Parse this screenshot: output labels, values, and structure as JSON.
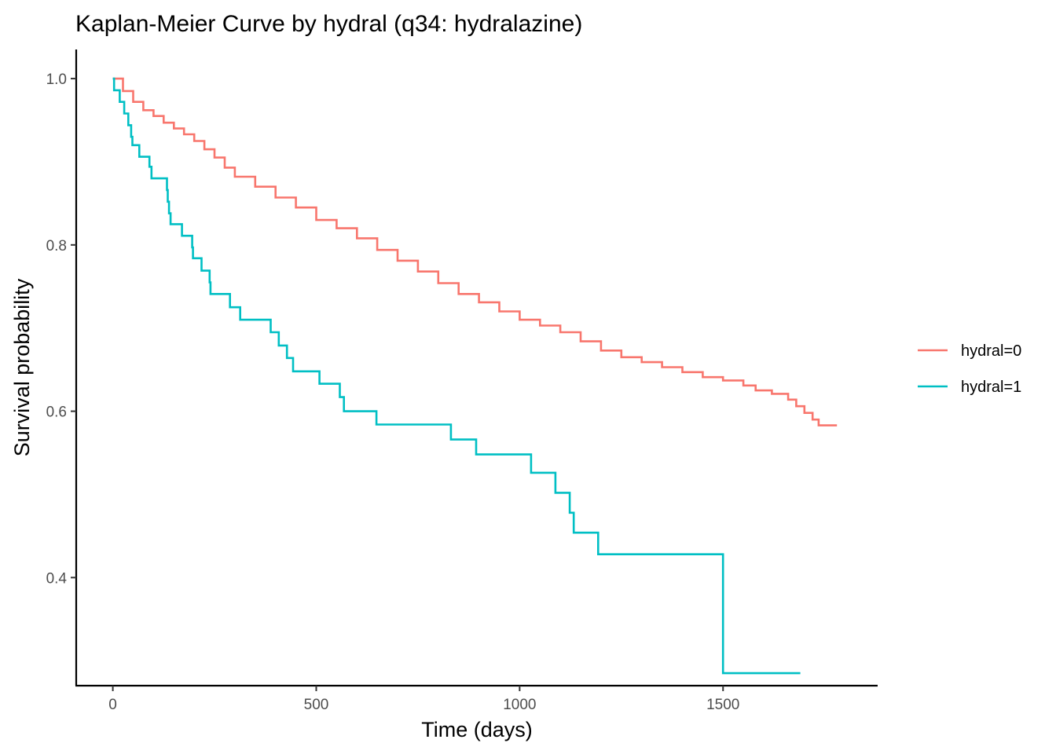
{
  "chart_data": {
    "type": "line",
    "step": true,
    "title": "Kaplan-Meier Curve by hydral (q34: hydralazine)",
    "xlabel": "Time (days)",
    "ylabel": "Survival probability",
    "xlim": [
      -90,
      1880
    ],
    "ylim": [
      0.27,
      1.035
    ],
    "xticks": [
      0,
      500,
      1000,
      1500
    ],
    "xtick_labels": [
      "0",
      "500",
      "1000",
      "1500"
    ],
    "yticks": [
      0.4,
      0.6,
      0.8,
      1.0
    ],
    "ytick_labels": [
      "0.4",
      "0.6",
      "0.8",
      "1.0"
    ],
    "grid": false,
    "legend_position": "right",
    "series": [
      {
        "name": "hydral=0",
        "color": "#F8766D",
        "points": [
          [
            0,
            1.0
          ],
          [
            25,
            0.985
          ],
          [
            50,
            0.972
          ],
          [
            75,
            0.962
          ],
          [
            100,
            0.955
          ],
          [
            125,
            0.947
          ],
          [
            150,
            0.94
          ],
          [
            175,
            0.933
          ],
          [
            200,
            0.925
          ],
          [
            225,
            0.915
          ],
          [
            250,
            0.905
          ],
          [
            275,
            0.893
          ],
          [
            300,
            0.882
          ],
          [
            350,
            0.87
          ],
          [
            400,
            0.857
          ],
          [
            450,
            0.845
          ],
          [
            500,
            0.83
          ],
          [
            550,
            0.82
          ],
          [
            600,
            0.808
          ],
          [
            650,
            0.794
          ],
          [
            700,
            0.781
          ],
          [
            750,
            0.768
          ],
          [
            800,
            0.754
          ],
          [
            850,
            0.741
          ],
          [
            900,
            0.731
          ],
          [
            950,
            0.72
          ],
          [
            1000,
            0.71
          ],
          [
            1050,
            0.703
          ],
          [
            1100,
            0.695
          ],
          [
            1150,
            0.684
          ],
          [
            1200,
            0.673
          ],
          [
            1250,
            0.665
          ],
          [
            1300,
            0.659
          ],
          [
            1350,
            0.653
          ],
          [
            1400,
            0.647
          ],
          [
            1450,
            0.641
          ],
          [
            1500,
            0.637
          ],
          [
            1550,
            0.631
          ],
          [
            1580,
            0.625
          ],
          [
            1620,
            0.621
          ],
          [
            1660,
            0.614
          ],
          [
            1680,
            0.606
          ],
          [
            1700,
            0.598
          ],
          [
            1720,
            0.59
          ],
          [
            1735,
            0.583
          ],
          [
            1780,
            0.583
          ]
        ]
      },
      {
        "name": "hydral=1",
        "color": "#00BFC4",
        "points": [
          [
            0,
            1.0
          ],
          [
            3,
            0.986
          ],
          [
            17,
            0.972
          ],
          [
            28,
            0.958
          ],
          [
            38,
            0.944
          ],
          [
            45,
            0.93
          ],
          [
            48,
            0.92
          ],
          [
            60,
            0.92
          ],
          [
            65,
            0.906
          ],
          [
            85,
            0.906
          ],
          [
            90,
            0.894
          ],
          [
            95,
            0.88
          ],
          [
            130,
            0.88
          ],
          [
            133,
            0.866
          ],
          [
            135,
            0.852
          ],
          [
            138,
            0.838
          ],
          [
            142,
            0.825
          ],
          [
            165,
            0.825
          ],
          [
            170,
            0.811
          ],
          [
            190,
            0.811
          ],
          [
            195,
            0.797
          ],
          [
            197,
            0.784
          ],
          [
            215,
            0.784
          ],
          [
            218,
            0.769
          ],
          [
            235,
            0.769
          ],
          [
            238,
            0.755
          ],
          [
            240,
            0.741
          ],
          [
            285,
            0.741
          ],
          [
            288,
            0.725
          ],
          [
            310,
            0.725
          ],
          [
            313,
            0.71
          ],
          [
            385,
            0.71
          ],
          [
            388,
            0.695
          ],
          [
            405,
            0.695
          ],
          [
            408,
            0.679
          ],
          [
            425,
            0.679
          ],
          [
            428,
            0.664
          ],
          [
            440,
            0.664
          ],
          [
            443,
            0.648
          ],
          [
            505,
            0.648
          ],
          [
            508,
            0.633
          ],
          [
            555,
            0.633
          ],
          [
            558,
            0.617
          ],
          [
            565,
            0.617
          ],
          [
            568,
            0.6
          ],
          [
            645,
            0.6
          ],
          [
            648,
            0.584
          ],
          [
            828,
            0.584
          ],
          [
            831,
            0.566
          ],
          [
            890,
            0.566
          ],
          [
            893,
            0.548
          ],
          [
            1025,
            0.548
          ],
          [
            1028,
            0.526
          ],
          [
            1085,
            0.526
          ],
          [
            1088,
            0.502
          ],
          [
            1120,
            0.502
          ],
          [
            1123,
            0.478
          ],
          [
            1130,
            0.478
          ],
          [
            1133,
            0.454
          ],
          [
            1190,
            0.454
          ],
          [
            1193,
            0.428
          ],
          [
            1497,
            0.428
          ],
          [
            1500,
            0.285
          ],
          [
            1690,
            0.285
          ]
        ]
      }
    ]
  }
}
